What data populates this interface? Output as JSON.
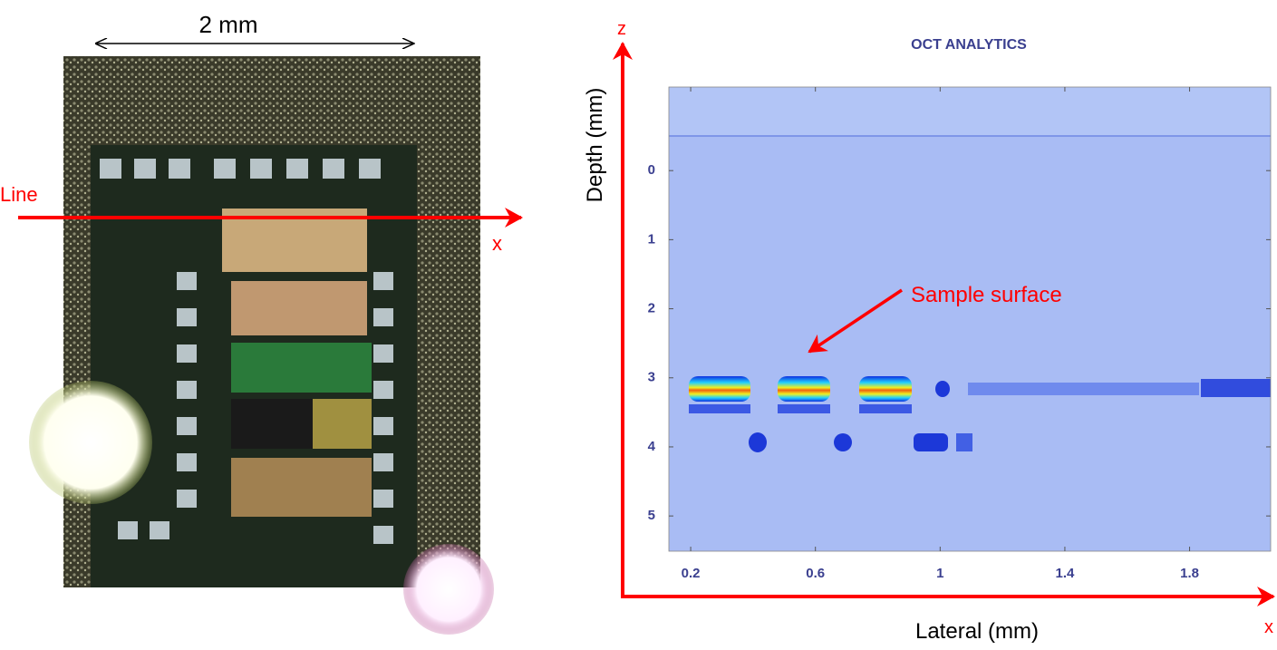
{
  "photo": {
    "scale_label": "2 mm",
    "line_label": "Line",
    "axis_label": "x"
  },
  "chart_data": {
    "type": "heatmap",
    "title": "OCT ANALYTICS",
    "xlabel": "Lateral (mm)",
    "ylabel": "Depth (mm)",
    "x_axis_letter": "x",
    "z_axis_letter": "z",
    "annotation": "Sample surface",
    "xlim": [
      0.13,
      2.06
    ],
    "ylim": [
      5.51,
      -1.21
    ],
    "xticks": [
      0.2,
      0.6,
      1,
      1.4,
      1.8
    ],
    "yticks": [
      0,
      1,
      2,
      3,
      4,
      5
    ]
  }
}
